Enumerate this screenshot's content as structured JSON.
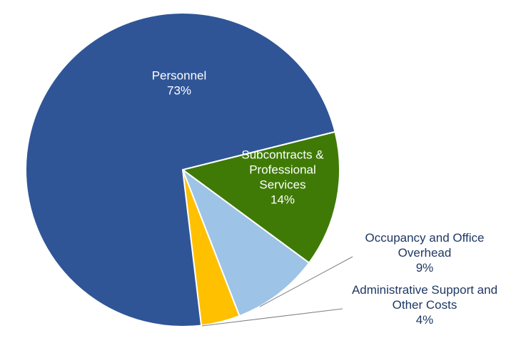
{
  "chart_data": {
    "type": "pie",
    "title": "",
    "start_angle_deg": 0,
    "direction": "clockwise",
    "slices": [
      {
        "label_lines": [
          "Subcontracts &",
          "Professional",
          "Services"
        ],
        "value": 14,
        "value_label": "14%",
        "color": "#3f7a06",
        "label_color": "#ffffff",
        "label_placement": "inside"
      },
      {
        "label_lines": [
          "Occupancy and Office",
          "Overhead"
        ],
        "value": 9,
        "value_label": "9%",
        "color": "#9dc3e6",
        "label_color": "#1f3864",
        "label_placement": "outside-leader"
      },
      {
        "label_lines": [
          "Administrative Support and",
          "Other Costs"
        ],
        "value": 4,
        "value_label": "4%",
        "color": "#ffc000",
        "label_color": "#1f3864",
        "label_placement": "outside-leader"
      },
      {
        "label_lines": [
          "Personnel"
        ],
        "value": 73,
        "value_label": "73%",
        "color": "#2f5597",
        "label_color": "#ffffff",
        "label_placement": "inside"
      }
    ],
    "leader_line_color": "#808080",
    "slice_border_color": "#ffffff"
  }
}
